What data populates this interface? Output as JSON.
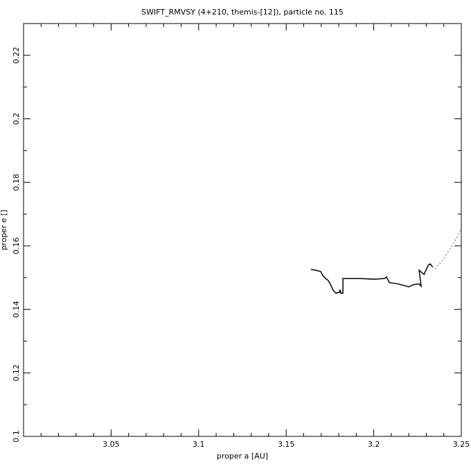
{
  "chart_data": {
    "type": "line",
    "title": "SWIFT_RMVSY (4+210, themis-[12]), particle no. 115",
    "x_label": "proper a [AU]",
    "y_label": "proper e []",
    "xlim": [
      3.0,
      3.25
    ],
    "ylim": [
      0.1,
      0.23
    ],
    "xticks": [
      3.05,
      3.1,
      3.15,
      3.2,
      3.25
    ],
    "yticks": [
      0.1,
      0.12,
      0.14,
      0.16,
      0.18,
      0.2,
      0.22
    ],
    "xminorticks": [
      3.01,
      3.02,
      3.03,
      3.04,
      3.06,
      3.07,
      3.08,
      3.09,
      3.11,
      3.12,
      3.13,
      3.14,
      3.16,
      3.17,
      3.18,
      3.19,
      3.21,
      3.22,
      3.23,
      3.24
    ],
    "yminorticks": [
      0.11,
      0.13,
      0.15,
      0.17,
      0.19,
      0.21
    ],
    "series": [
      {
        "color": "#000000",
        "style": "solid",
        "x": [
          3.1642,
          3.167,
          3.1697,
          3.171,
          3.1725,
          3.174,
          3.1756,
          3.1768,
          3.1784,
          3.1804,
          3.1808,
          3.1812,
          3.1824,
          3.1824,
          3.1923,
          3.2002,
          3.2061,
          3.2073,
          3.2089,
          3.214,
          3.22,
          3.2228,
          3.2259,
          3.2271,
          3.2259,
          3.2287,
          3.2311,
          3.2323,
          3.2335
        ],
        "values": [
          0.1526,
          0.1523,
          0.1519,
          0.1506,
          0.1497,
          0.1491,
          0.1475,
          0.146,
          0.1451,
          0.1454,
          0.1462,
          0.1451,
          0.1451,
          0.1497,
          0.1497,
          0.1495,
          0.1497,
          0.1502,
          0.1484,
          0.148,
          0.1471,
          0.1478,
          0.148,
          0.1473,
          0.1523,
          0.151,
          0.1539,
          0.1543,
          0.1534
        ]
      },
      {
        "color": "#000000",
        "style": "dotted",
        "x": [
          3.2335,
          3.2351,
          3.2367,
          3.2398,
          3.2418,
          3.2446,
          3.2477,
          3.2497
        ],
        "values": [
          0.1534,
          0.1528,
          0.1539,
          0.1558,
          0.1576,
          0.16,
          0.1628,
          0.1652
        ]
      }
    ]
  }
}
